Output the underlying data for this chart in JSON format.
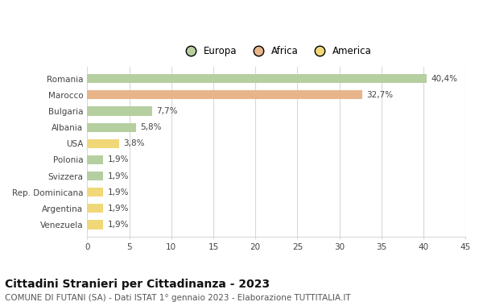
{
  "categories": [
    "Romania",
    "Marocco",
    "Bulgaria",
    "Albania",
    "USA",
    "Polonia",
    "Svizzera",
    "Rep. Dominicana",
    "Argentina",
    "Venezuela"
  ],
  "values": [
    40.4,
    32.7,
    7.7,
    5.8,
    3.8,
    1.9,
    1.9,
    1.9,
    1.9,
    1.9
  ],
  "labels": [
    "40,4%",
    "32,7%",
    "7,7%",
    "5,8%",
    "3,8%",
    "1,9%",
    "1,9%",
    "1,9%",
    "1,9%",
    "1,9%"
  ],
  "colors": [
    "#b5cfa0",
    "#e8b48a",
    "#b5cfa0",
    "#b5cfa0",
    "#f0d878",
    "#b5cfa0",
    "#b5cfa0",
    "#f0d878",
    "#f0d878",
    "#f0d878"
  ],
  "legend": [
    {
      "label": "Europa",
      "color": "#b5cfa0"
    },
    {
      "label": "Africa",
      "color": "#e8b48a"
    },
    {
      "label": "America",
      "color": "#f0d878"
    }
  ],
  "title": "Cittadini Stranieri per Cittadinanza - 2023",
  "subtitle": "COMUNE DI FUTANI (SA) - Dati ISTAT 1° gennaio 2023 - Elaborazione TUTTITALIA.IT",
  "xlim": [
    0,
    45
  ],
  "xticks": [
    0,
    5,
    10,
    15,
    20,
    25,
    30,
    35,
    40,
    45
  ],
  "background_color": "#ffffff",
  "bar_height": 0.55,
  "title_fontsize": 10,
  "subtitle_fontsize": 7.5,
  "label_fontsize": 7.5,
  "tick_fontsize": 7.5,
  "legend_fontsize": 8.5,
  "grid_color": "#d8d8d8"
}
